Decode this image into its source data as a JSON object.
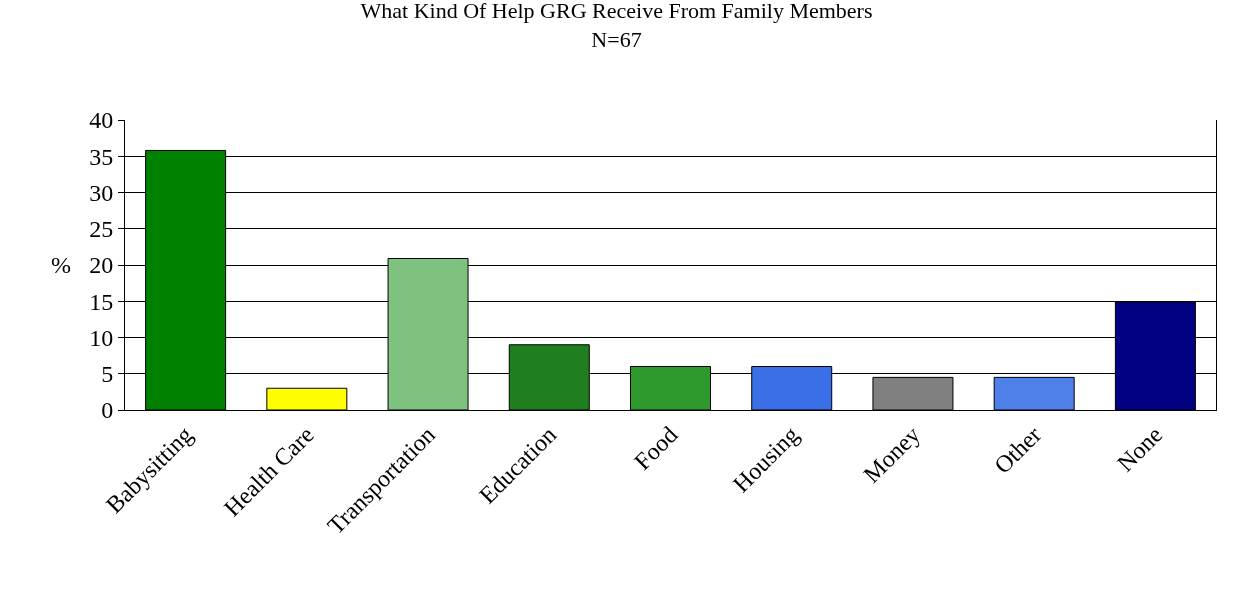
{
  "chart_data": {
    "type": "bar",
    "title": "What Kind Of Help GRG Receive From Family Members",
    "subtitle": "N=67",
    "ylabel": "%",
    "categories": [
      "Babysitting",
      "Health Care",
      "Transportation",
      "Education",
      "Food",
      "Housing",
      "Money",
      "Other",
      "None"
    ],
    "values": [
      35.8,
      3.0,
      20.9,
      9.0,
      6.0,
      6.0,
      4.5,
      4.5,
      14.9
    ],
    "colors": [
      "#008000",
      "#ffff00",
      "#7fc27f",
      "#1f7f1f",
      "#2e9a2e",
      "#3b6fe8",
      "#808080",
      "#4f7fe8",
      "#000080"
    ],
    "ylim": [
      0,
      40
    ],
    "yticks": [
      0,
      5,
      10,
      15,
      20,
      25,
      30,
      35,
      40
    ],
    "grid": "y"
  }
}
